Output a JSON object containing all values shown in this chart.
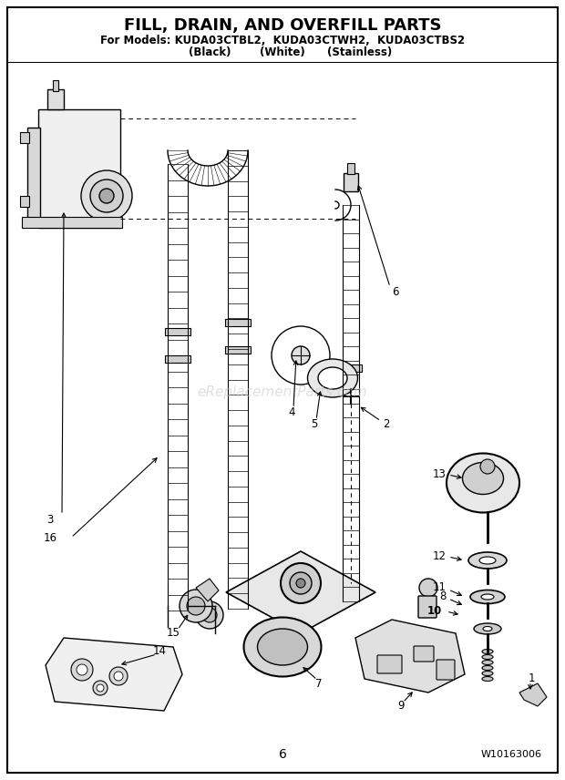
{
  "title": "FILL, DRAIN, AND OVERFILL PARTS",
  "subtitle1": "For Models: KUDA03CTBL2,  KUDA03CTWH2,  KUDA03CTBS2",
  "subtitle2_black": "(Black)",
  "subtitle2_white": "(White)",
  "subtitle2_stainless": "(Stainless)",
  "page_number": "6",
  "doc_number": "W10163006",
  "background_color": "#ffffff",
  "border_color": "#000000",
  "watermark": "eReplacementParts.com",
  "title_fontsize": 13,
  "subtitle_fontsize": 8.5,
  "figsize": [
    6.2,
    8.56
  ],
  "dpi": 100
}
